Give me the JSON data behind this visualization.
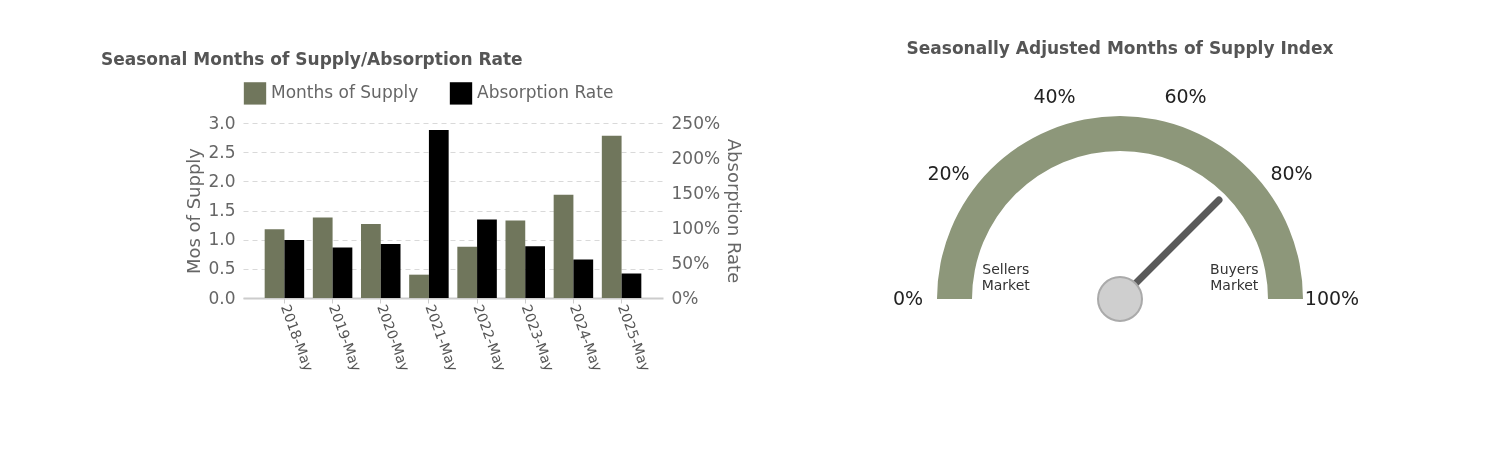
{
  "chart_data": [
    {
      "type": "bar",
      "title": "Seasonal Months of Supply/Absorption Rate",
      "ylabel": "Mos of Supply",
      "y2label": "Absorption Rate",
      "categories": [
        "2018-May",
        "2019-May",
        "2020-May",
        "2021-May",
        "2022-May",
        "2023-May",
        "2024-May",
        "2025-May"
      ],
      "series": [
        {
          "name": "Months of Supply",
          "color": "#70765c",
          "values": [
            1.18,
            1.38,
            1.27,
            0.4,
            0.88,
            1.33,
            1.77,
            2.78
          ]
        },
        {
          "name": "Absorption Rate",
          "color": "#000000",
          "axis": "y2",
          "values": [
            83,
            72,
            77,
            240,
            112,
            74,
            55,
            35
          ]
        }
      ],
      "ylim": [
        0,
        3
      ],
      "yticks": [
        {
          "value": 0,
          "label": "0.0"
        },
        {
          "value": 0.5,
          "label": "0.5"
        },
        {
          "value": 1,
          "label": "1.0"
        },
        {
          "value": 1.5,
          "label": "1.5"
        },
        {
          "value": 2,
          "label": "2.0"
        },
        {
          "value": 2.5,
          "label": "2.5"
        },
        {
          "value": 3,
          "label": "3.0"
        }
      ],
      "y2lim": [
        0,
        250
      ],
      "y2ticks": [
        {
          "value": 0,
          "label": "0%"
        },
        {
          "value": 50,
          "label": "50%"
        },
        {
          "value": 100,
          "label": "100%"
        },
        {
          "value": 150,
          "label": "150%"
        },
        {
          "value": 200,
          "label": "200%"
        },
        {
          "value": 250,
          "label": "250%"
        }
      ],
      "grid": "y",
      "legend": "top"
    },
    {
      "type": "donut",
      "title": "Seasonally Adjusted Months of Supply Index",
      "categories": [
        "Sellers Market",
        "Buyers Market"
      ],
      "values": [
        50,
        50
      ],
      "colors": [
        "#8d977a",
        "#8d977a"
      ],
      "needle": "Buyers Market",
      "annotations": [
        "0%",
        "20%",
        "40%",
        "60%",
        "80%",
        "100%"
      ]
    }
  ]
}
